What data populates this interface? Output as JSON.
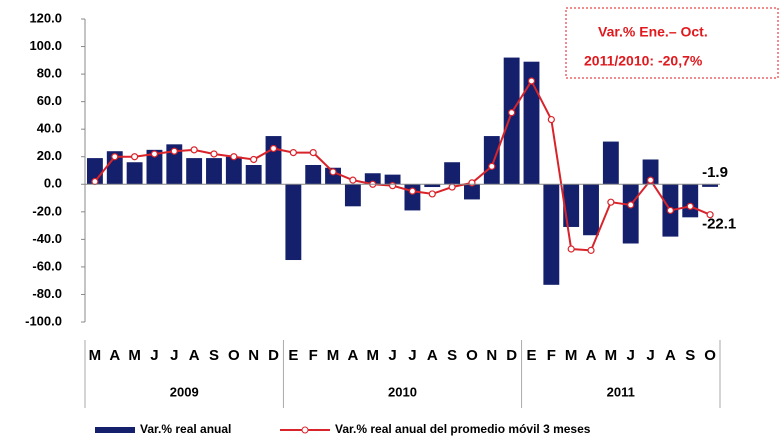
{
  "chart_data": {
    "type": "bar",
    "categories": [
      "M",
      "A",
      "M",
      "J",
      "J",
      "A",
      "S",
      "O",
      "N",
      "D",
      "E",
      "F",
      "M",
      "A",
      "M",
      "J",
      "J",
      "A",
      "S",
      "O",
      "N",
      "D",
      "E",
      "F",
      "M",
      "A",
      "M",
      "J",
      "J",
      "A",
      "S",
      "O"
    ],
    "years": [
      {
        "label": "2009",
        "span": 10
      },
      {
        "label": "2010",
        "span": 12
      },
      {
        "label": "2011",
        "span": 10
      }
    ],
    "series": [
      {
        "name": "Var.% real anual",
        "type": "bar",
        "color": "#14206b",
        "values": [
          19,
          24,
          16,
          25,
          29,
          19,
          19,
          20,
          14,
          35,
          -55,
          14,
          12,
          -16,
          8,
          7,
          -19,
          -2,
          16,
          -11,
          35,
          92,
          89,
          -73,
          -31,
          -37,
          31,
          -43,
          18,
          -38,
          -24,
          -1.9
        ],
        "value_labels": [
          null,
          null,
          null,
          null,
          null,
          null,
          null,
          null,
          null,
          null,
          null,
          null,
          null,
          null,
          null,
          null,
          null,
          null,
          null,
          null,
          null,
          null,
          null,
          null,
          null,
          null,
          null,
          null,
          null,
          null,
          null,
          "-1.9"
        ]
      },
      {
        "name": "Var.% real anual del promedio móvil 3 meses",
        "type": "line",
        "color": "#d9232a",
        "values": [
          2,
          20,
          20,
          22,
          24,
          25,
          22,
          20,
          18,
          26,
          23,
          23,
          9,
          3,
          0,
          -1,
          -5,
          -7,
          -2,
          1,
          13,
          52,
          75,
          47,
          -47,
          -48,
          -13,
          -15,
          3,
          -19,
          -16,
          -22.1
        ],
        "value_labels": [
          null,
          null,
          null,
          null,
          null,
          null,
          null,
          null,
          null,
          null,
          null,
          null,
          null,
          null,
          null,
          null,
          null,
          null,
          null,
          null,
          null,
          null,
          null,
          null,
          null,
          null,
          null,
          null,
          null,
          null,
          null,
          "-22.1"
        ]
      }
    ],
    "ylim": [
      -100,
      120
    ],
    "yticks": [
      {
        "value": 120,
        "label": "120.0"
      },
      {
        "value": 100,
        "label": "100.0"
      },
      {
        "value": 80,
        "label": "80.0"
      },
      {
        "value": 60,
        "label": "60.0"
      },
      {
        "value": 40,
        "label": "40.0"
      },
      {
        "value": 20,
        "label": "20.0"
      },
      {
        "value": 0,
        "label": "0.0"
      },
      {
        "value": -20,
        "label": "-20.0"
      },
      {
        "value": -40,
        "label": "-40.0"
      },
      {
        "value": -60,
        "label": "-60.0"
      },
      {
        "value": -80,
        "label": "-80.0"
      },
      {
        "value": -100,
        "label": "-100.0"
      }
    ],
    "annotation": [
      "Var.% Ene.– Oct.",
      "2011/2010:  -20,7%"
    ],
    "grid": false
  }
}
